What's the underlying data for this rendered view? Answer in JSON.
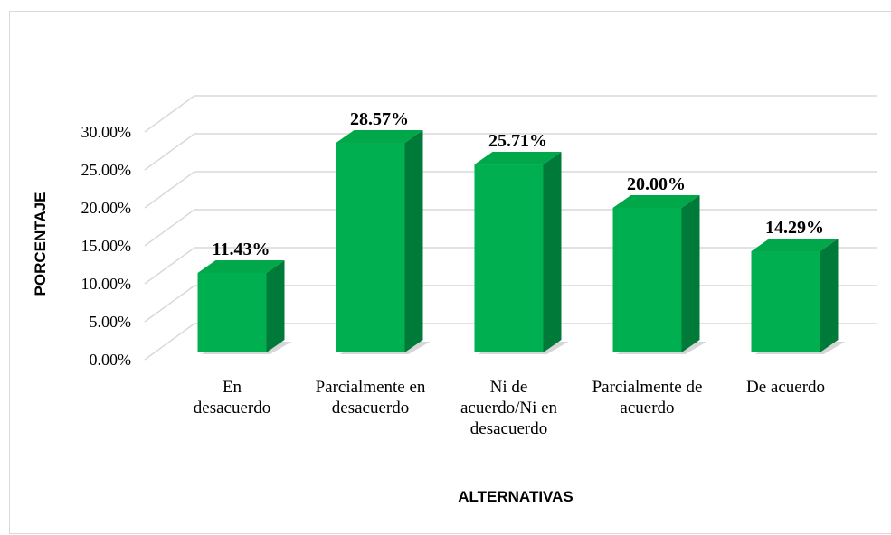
{
  "chart_data": {
    "type": "bar",
    "categories": [
      "En desacuerdo",
      "Parcialmente en desacuerdo",
      "Ni de acuerdo/Ni en desacuerdo",
      "Parcialmente de acuerdo",
      "De acuerdo"
    ],
    "values": [
      11.43,
      28.57,
      25.71,
      20.0,
      14.29
    ],
    "value_labels": [
      "11.43%",
      "28.57%",
      "25.71%",
      "20.00%",
      "14.29%"
    ],
    "color": "#00b050",
    "ylim": [
      0,
      30
    ],
    "yticks": [
      {
        "value": 0,
        "label": "0.00%"
      },
      {
        "value": 5,
        "label": "5.00%"
      },
      {
        "value": 10,
        "label": "10.00%"
      },
      {
        "value": 15,
        "label": "15.00%"
      },
      {
        "value": 20,
        "label": "20.00%"
      },
      {
        "value": 25,
        "label": "25.00%"
      },
      {
        "value": 30,
        "label": "30.00%"
      }
    ],
    "y_label": "PORCENTAJE",
    "x_label": "ALTERNATIVAS",
    "grid": true
  }
}
